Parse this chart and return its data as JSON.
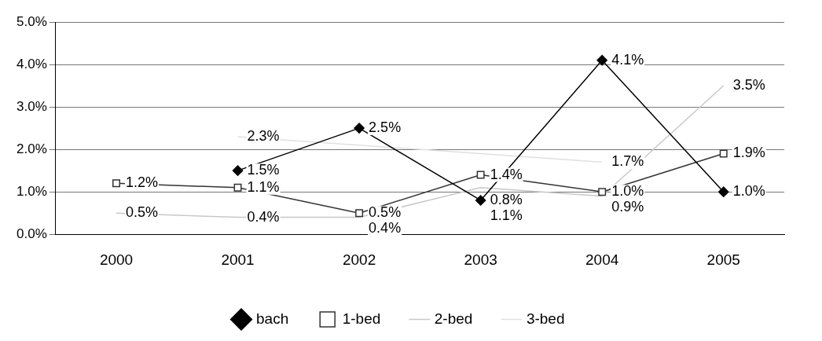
{
  "chart_data": {
    "type": "line",
    "categories": [
      "2000",
      "2001",
      "2002",
      "2003",
      "2004",
      "2005"
    ],
    "series": [
      {
        "name": "bach",
        "color": "#000000",
        "marker": "diamond",
        "values": [
          null,
          1.5,
          2.5,
          0.8,
          4.1,
          1.0
        ],
        "value_labels": [
          null,
          "1.5%",
          "2.5%",
          "0.8%",
          "4.1%",
          "1.0%"
        ]
      },
      {
        "name": "1-bed",
        "color": "#333333",
        "marker": "square",
        "values": [
          1.2,
          1.1,
          0.5,
          1.4,
          1.0,
          1.9
        ],
        "value_labels": [
          "1.2%",
          "1.1%",
          "0.5%",
          "1.4%",
          "1.0%",
          "1.9%"
        ]
      },
      {
        "name": "2-bed",
        "color": "#c8c8c8",
        "marker": "none",
        "values": [
          0.5,
          0.4,
          0.4,
          1.1,
          0.9,
          3.5
        ],
        "value_labels": [
          "0.5%",
          "0.4%",
          "0.4%",
          "1.1%",
          "0.9%",
          "3.5%"
        ]
      },
      {
        "name": "3-bed",
        "color": "#e0e0e0",
        "marker": "none",
        "values": [
          null,
          2.3,
          null,
          null,
          1.7,
          null
        ],
        "value_labels": [
          null,
          "2.3%",
          null,
          null,
          "1.7%",
          null
        ]
      }
    ],
    "ylim": [
      0,
      5
    ],
    "yticks": [
      {
        "value": 0,
        "label": "0.0%"
      },
      {
        "value": 1,
        "label": "1.0%"
      },
      {
        "value": 2,
        "label": "2.0%"
      },
      {
        "value": 3,
        "label": "3.0%"
      },
      {
        "value": 4,
        "label": "4.0%"
      },
      {
        "value": 5,
        "label": "5.0%"
      }
    ],
    "grid": "y",
    "legend": "bottom"
  }
}
